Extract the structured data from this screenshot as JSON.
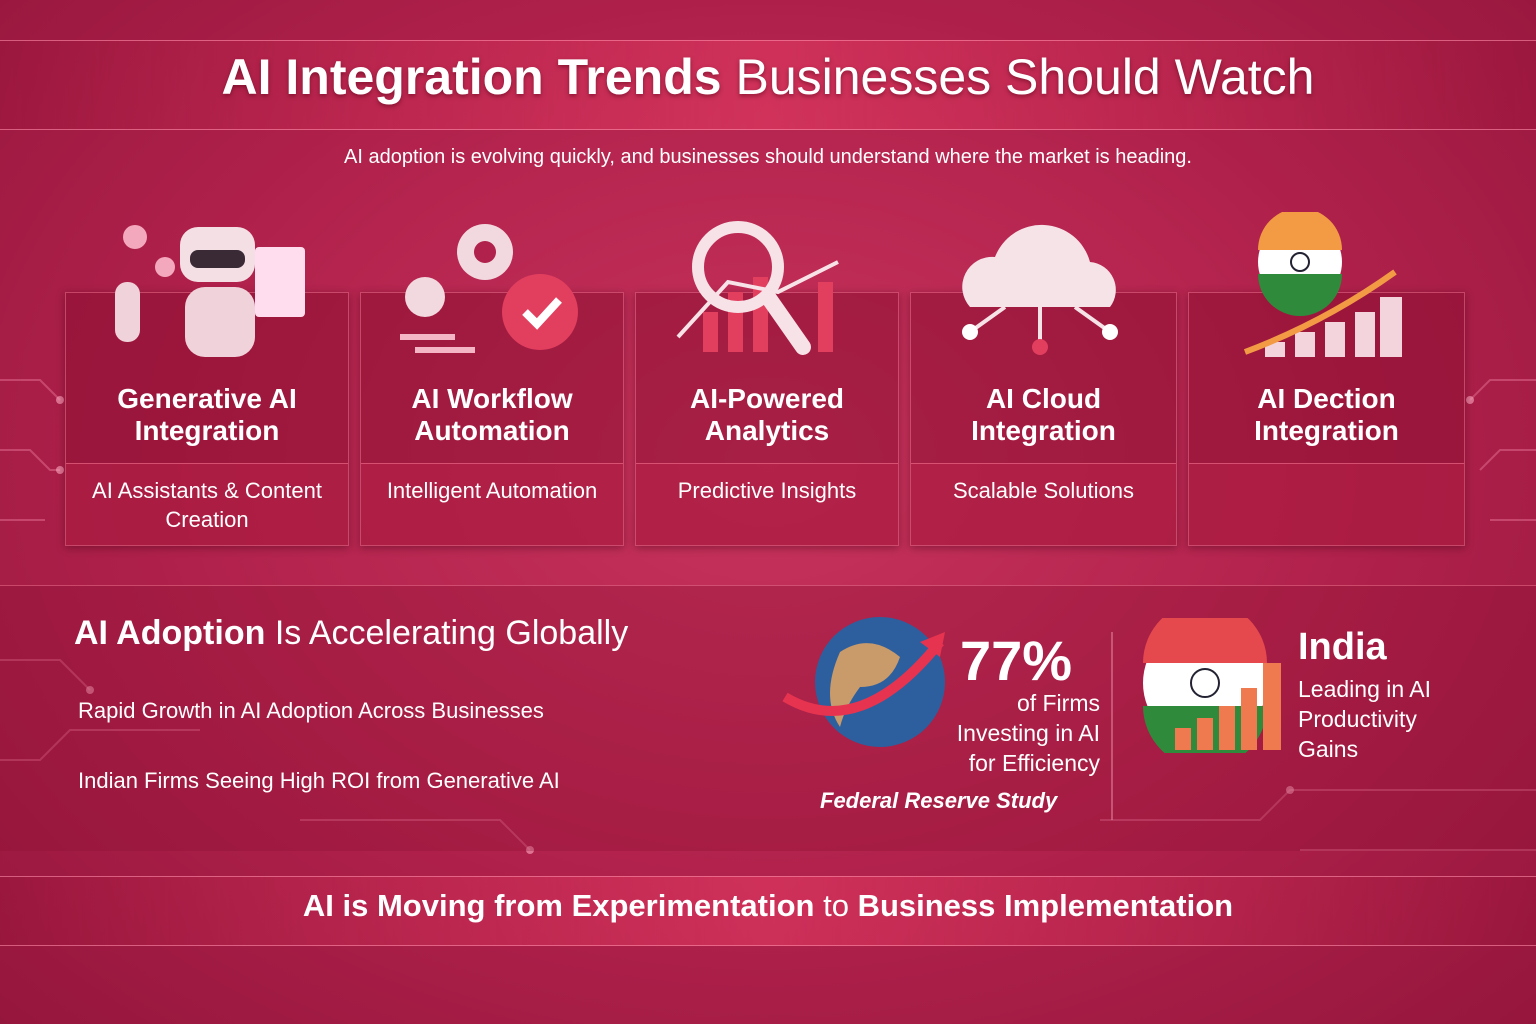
{
  "header": {
    "title_parts": [
      "AI Integration Trends",
      "Businesses Should Watch"
    ],
    "subtitle": "AI adoption is evolving quickly, and businesses should understand where the market is heading."
  },
  "cards": [
    {
      "title": "Generative AI Integration",
      "description": "AI Assistants & Content Creation"
    },
    {
      "title": "AI Workflow Automation",
      "description": "Intelligent Automation"
    },
    {
      "title": "AI-Powered Analytics",
      "description": "Predictive Insights"
    },
    {
      "title": "AI Cloud Integration",
      "description": "Scalable Solutions"
    },
    {
      "title": "AI Dection Integration"
    }
  ],
  "adoption": {
    "heading_parts": [
      "AI Adoption",
      "Is Accelerating Globally"
    ],
    "bullets": [
      "Rapid Growth in AI Adoption Across Businesses",
      "Indian Firms Seeing High ROI from Generative AI"
    ],
    "stat": {
      "value": "77%",
      "text": "of Firms Investing in AI for Efficiency",
      "source": "Federal Reserve Study"
    },
    "india": {
      "title": "India",
      "text": "Leading in AI Productivity Gains"
    }
  },
  "footer": {
    "parts": [
      "AI is Moving from Experimentation",
      "to",
      "Business Implementation"
    ]
  }
}
